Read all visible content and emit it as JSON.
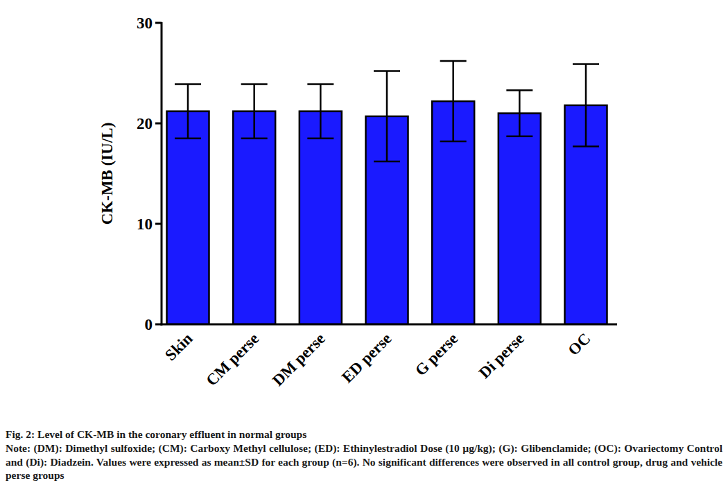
{
  "chart_data": {
    "type": "bar",
    "title": "Fig. 2: Level of CK-MB in the coronary effluent in normal groups",
    "note": "Note: (DM): Dimethyl sulfoxide; (CM): Carboxy Methyl cellulose; (ED): Ethinylestradiol Dose (10 µg/kg); (G): Glibenclamide; (OC): Ovariectomy Control and (Di): Diadzein. Values were expressed as mean±SD for each group (n=6). No significant differences were observed in all control group, drug and vehicle perse groups",
    "y_label": "CK-MB (IU/L)",
    "categories": [
      "Skin",
      "CM perse",
      "DM perse",
      "ED perse",
      "G perse",
      "Di perse",
      "OC"
    ],
    "values": [
      21.2,
      21.2,
      21.2,
      20.7,
      22.2,
      21.0,
      21.8
    ],
    "errors": [
      2.7,
      2.7,
      2.7,
      4.5,
      4.0,
      2.3,
      4.1
    ],
    "color": "#1a1aff",
    "ylim": [
      0,
      30
    ],
    "yticks": [
      0,
      10,
      20,
      30
    ],
    "grid": false
  }
}
